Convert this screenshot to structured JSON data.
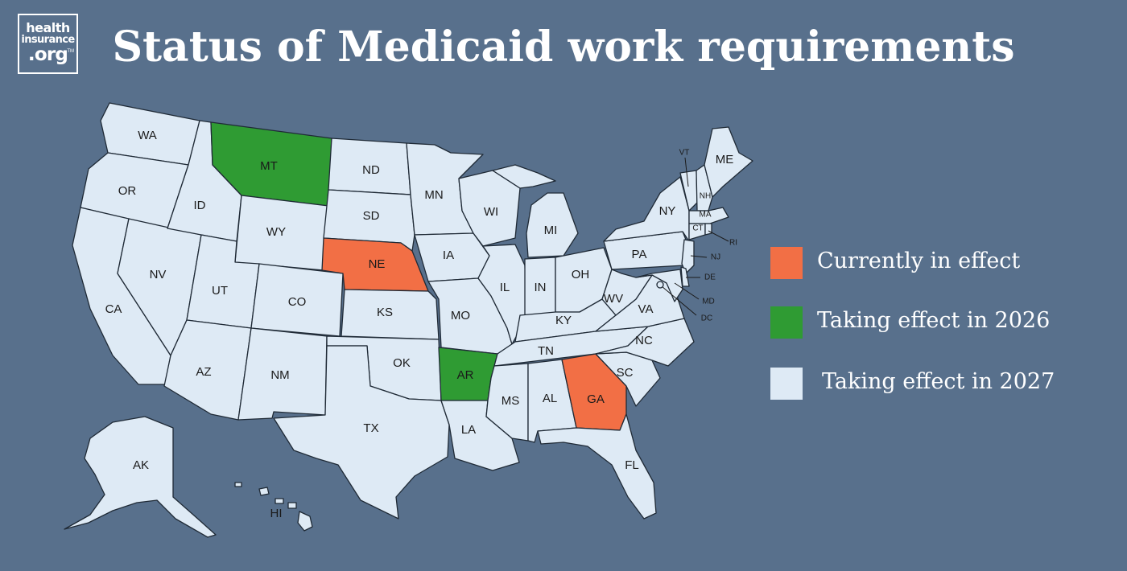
{
  "logo": {
    "line1": "health",
    "line2": "insurance",
    "line3": ".org",
    "tm": "TM"
  },
  "title": "Status of Medicaid work requirements",
  "colors": {
    "background": "#58708c",
    "currently_in_effect": "#f26f45",
    "taking_effect_2026": "#2f9b33",
    "taking_effect_2027": "#deeaf5",
    "border": "#1f2a36"
  },
  "legend": [
    {
      "label": "Currently in effect",
      "status": "current"
    },
    {
      "label": "Taking effect in 2026",
      "status": "y2026"
    },
    {
      "label": "Taking effect in 2027",
      "status": "y2027"
    }
  ],
  "states": [
    {
      "abbr": "WA",
      "status": "y2027"
    },
    {
      "abbr": "OR",
      "status": "y2027"
    },
    {
      "abbr": "CA",
      "status": "y2027"
    },
    {
      "abbr": "NV",
      "status": "y2027"
    },
    {
      "abbr": "ID",
      "status": "y2027"
    },
    {
      "abbr": "MT",
      "status": "y2026"
    },
    {
      "abbr": "WY",
      "status": "y2027"
    },
    {
      "abbr": "UT",
      "status": "y2027"
    },
    {
      "abbr": "AZ",
      "status": "y2027"
    },
    {
      "abbr": "CO",
      "status": "y2027"
    },
    {
      "abbr": "NM",
      "status": "y2027"
    },
    {
      "abbr": "ND",
      "status": "y2027"
    },
    {
      "abbr": "SD",
      "status": "y2027"
    },
    {
      "abbr": "NE",
      "status": "current"
    },
    {
      "abbr": "KS",
      "status": "y2027"
    },
    {
      "abbr": "OK",
      "status": "y2027"
    },
    {
      "abbr": "TX",
      "status": "y2027"
    },
    {
      "abbr": "MN",
      "status": "y2027"
    },
    {
      "abbr": "IA",
      "status": "y2027"
    },
    {
      "abbr": "MO",
      "status": "y2027"
    },
    {
      "abbr": "AR",
      "status": "y2026"
    },
    {
      "abbr": "LA",
      "status": "y2027"
    },
    {
      "abbr": "WI",
      "status": "y2027"
    },
    {
      "abbr": "IL",
      "status": "y2027"
    },
    {
      "abbr": "MI",
      "status": "y2027"
    },
    {
      "abbr": "IN",
      "status": "y2027"
    },
    {
      "abbr": "OH",
      "status": "y2027"
    },
    {
      "abbr": "KY",
      "status": "y2027"
    },
    {
      "abbr": "TN",
      "status": "y2027"
    },
    {
      "abbr": "MS",
      "status": "y2027"
    },
    {
      "abbr": "AL",
      "status": "y2027"
    },
    {
      "abbr": "GA",
      "status": "current"
    },
    {
      "abbr": "FL",
      "status": "y2027"
    },
    {
      "abbr": "SC",
      "status": "y2027"
    },
    {
      "abbr": "NC",
      "status": "y2027"
    },
    {
      "abbr": "VA",
      "status": "y2027"
    },
    {
      "abbr": "WV",
      "status": "y2027"
    },
    {
      "abbr": "PA",
      "status": "y2027"
    },
    {
      "abbr": "NY",
      "status": "y2027"
    },
    {
      "abbr": "NJ",
      "status": "y2027"
    },
    {
      "abbr": "DE",
      "status": "y2027"
    },
    {
      "abbr": "MD",
      "status": "y2027"
    },
    {
      "abbr": "DC",
      "status": "y2027"
    },
    {
      "abbr": "VT",
      "status": "y2027"
    },
    {
      "abbr": "NH",
      "status": "y2027"
    },
    {
      "abbr": "ME",
      "status": "y2027"
    },
    {
      "abbr": "MA",
      "status": "y2027"
    },
    {
      "abbr": "CT",
      "status": "y2027"
    },
    {
      "abbr": "RI",
      "status": "y2027"
    },
    {
      "abbr": "AK",
      "status": "y2027"
    },
    {
      "abbr": "HI",
      "status": "y2027"
    }
  ]
}
